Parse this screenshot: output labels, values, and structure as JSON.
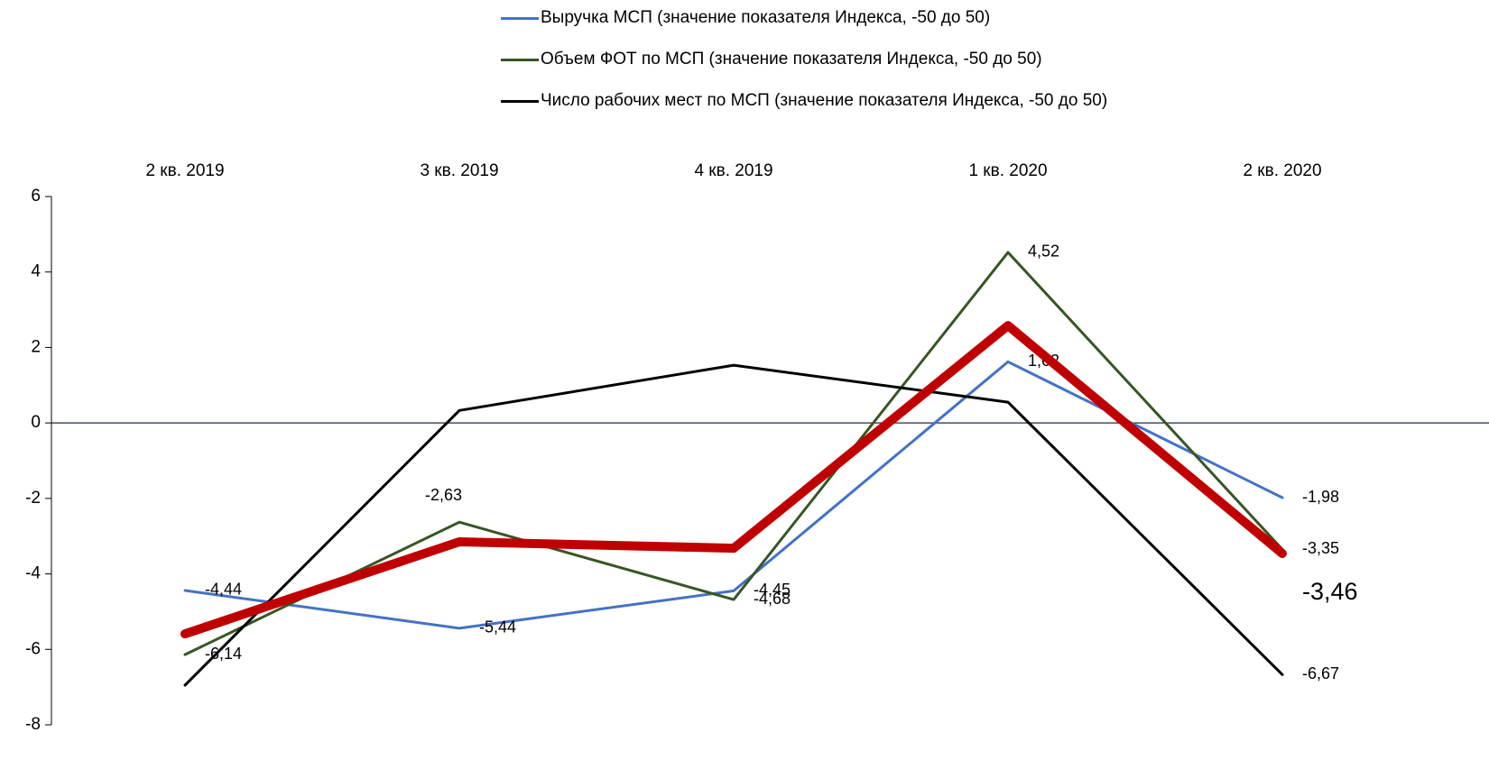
{
  "chart_data": {
    "type": "line",
    "categories": [
      "2 кв. 2019",
      "3 кв. 2019",
      "4 кв. 2019",
      "1 кв. 2020",
      "2 кв. 2020"
    ],
    "ylim": [
      -8,
      6
    ],
    "yticks": [
      -8,
      -6,
      -4,
      -2,
      0,
      2,
      4,
      6
    ],
    "series": [
      {
        "name": "Выручка МСП (значение показателя Индекса, -50 до 50)",
        "color": "#4472c4",
        "values": [
          -4.44,
          -5.44,
          -4.45,
          1.62,
          -1.98
        ],
        "value_labels": [
          "-4,44",
          "-5,44",
          "-4,45",
          "1,62",
          "-1,98"
        ]
      },
      {
        "name": "Объем ФОТ по МСП (значение показателя Индекса, -50 до 50)",
        "color": "#375623",
        "values": [
          -6.14,
          -2.63,
          -4.68,
          4.52,
          -3.35
        ],
        "value_labels": [
          "-6,14",
          "-2,63",
          "-4,68",
          "4,52",
          "-3,35"
        ]
      },
      {
        "name": "Число рабочих мест по МСП (значение показателя Индекса, -50 до 50)",
        "color": "#000000",
        "values": [
          -6.95,
          0.33,
          1.53,
          0.55,
          -6.67
        ],
        "value_labels": [
          null,
          null,
          null,
          null,
          "-6,67"
        ]
      },
      {
        "color": "#c00000",
        "values": [
          -5.59,
          -3.15,
          -3.32,
          2.58,
          -3.46
        ],
        "value_labels": [
          null,
          null,
          null,
          null,
          "-3,46"
        ]
      }
    ]
  }
}
